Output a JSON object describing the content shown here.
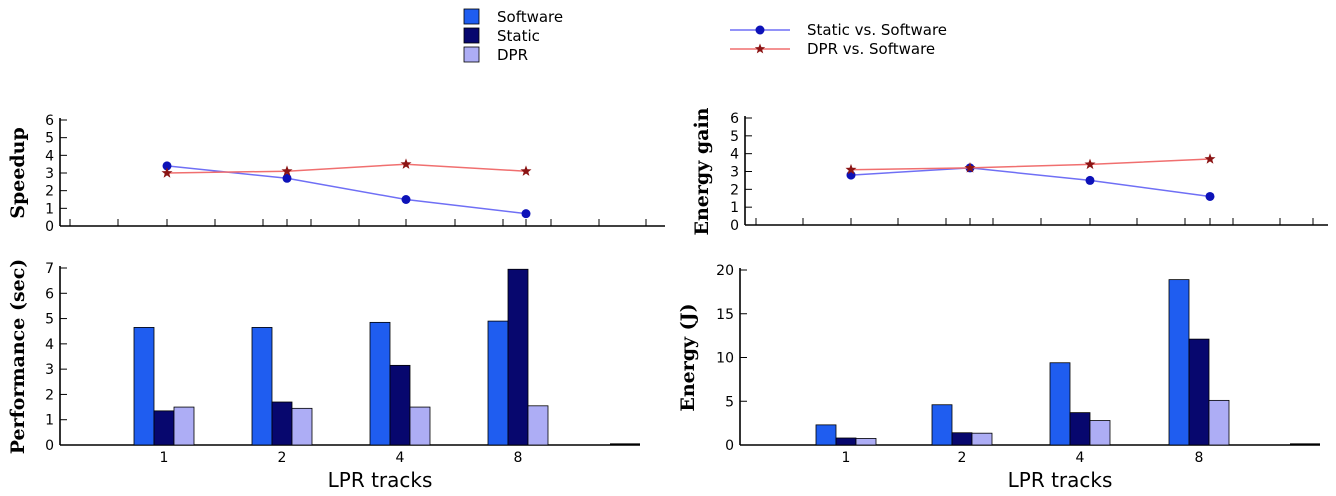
{
  "legends": {
    "bars": [
      {
        "label": "Software",
        "color": "#1f5df0"
      },
      {
        "label": "Static",
        "color": "#07076e"
      },
      {
        "label": "DPR",
        "color": "#adadf5"
      }
    ],
    "lines": [
      {
        "label": "Static vs. Software",
        "color": "#6f6ff5",
        "marker": "circle",
        "marker_color": "#0d12b8"
      },
      {
        "label": "DPR vs. Software",
        "color": "#f06f6f",
        "marker": "star",
        "marker_color": "#8b1414"
      }
    ]
  },
  "chart_data": [
    {
      "id": "speedup",
      "type": "line",
      "ylabel": "Speedup",
      "xlabel": "",
      "categories": [
        "1",
        "2",
        "4",
        "8"
      ],
      "ylim": [
        0,
        6
      ],
      "yticks": [
        "0",
        "1",
        "2",
        "3",
        "4",
        "5",
        "6"
      ],
      "series": [
        {
          "name": "Static vs. Software",
          "values": [
            3.4,
            2.7,
            1.5,
            0.7
          ]
        },
        {
          "name": "DPR vs. Software",
          "values": [
            3.0,
            3.1,
            3.5,
            3.1
          ]
        }
      ]
    },
    {
      "id": "energy_gain",
      "type": "line",
      "ylabel": "Energy gain",
      "xlabel": "",
      "categories": [
        "1",
        "2",
        "4",
        "8"
      ],
      "ylim": [
        0,
        6
      ],
      "yticks": [
        "0",
        "1",
        "2",
        "3",
        "4",
        "5",
        "6"
      ],
      "series": [
        {
          "name": "Static vs. Software",
          "values": [
            2.8,
            3.2,
            2.5,
            1.6
          ]
        },
        {
          "name": "DPR vs. Software",
          "values": [
            3.1,
            3.2,
            3.4,
            3.7
          ]
        }
      ]
    },
    {
      "id": "performance",
      "type": "bar",
      "ylabel": "Performance (sec)",
      "xlabel": "LPR tracks",
      "categories": [
        "1",
        "2",
        "4",
        "8"
      ],
      "ylim": [
        0,
        7
      ],
      "yticks": [
        "0",
        "1",
        "2",
        "3",
        "4",
        "5",
        "6",
        "7"
      ],
      "series": [
        {
          "name": "Software",
          "values": [
            4.65,
            4.65,
            4.85,
            4.9
          ]
        },
        {
          "name": "Static",
          "values": [
            1.35,
            1.7,
            3.15,
            6.95
          ]
        },
        {
          "name": "DPR",
          "values": [
            1.5,
            1.45,
            1.5,
            1.55
          ]
        }
      ]
    },
    {
      "id": "energy",
      "type": "bar",
      "ylabel": "Energy (J)",
      "xlabel": "LPR tracks",
      "categories": [
        "1",
        "2",
        "4",
        "8"
      ],
      "ylim": [
        0,
        20
      ],
      "yticks": [
        "0",
        "5",
        "10",
        "15",
        "20"
      ],
      "series": [
        {
          "name": "Software",
          "values": [
            2.3,
            4.6,
            9.4,
            18.9
          ]
        },
        {
          "name": "Static",
          "values": [
            0.8,
            1.4,
            3.7,
            12.1
          ]
        },
        {
          "name": "DPR",
          "values": [
            0.75,
            1.35,
            2.8,
            5.1
          ]
        }
      ]
    }
  ]
}
